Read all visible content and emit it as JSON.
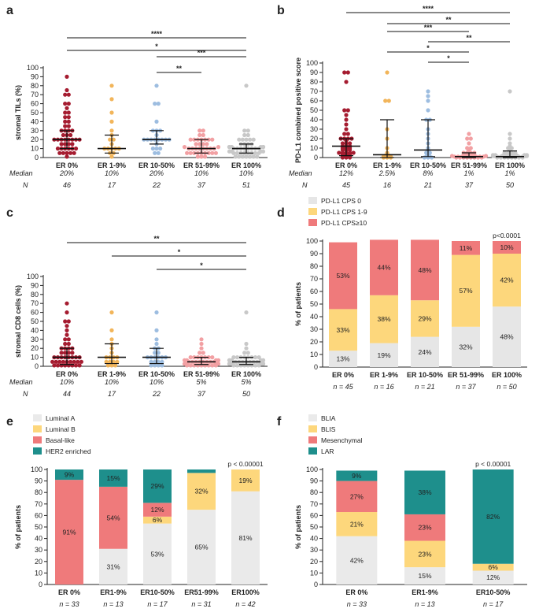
{
  "colors": {
    "er0": "#a51c30",
    "er19": "#f2b55a",
    "er1050": "#9dbde0",
    "er5199": "#f2a0a3",
    "er100": "#c8c8c8",
    "cps0": "#e6e6e6",
    "cps19": "#fdd77c",
    "cps10": "#ef7a7b",
    "lumA": "#eaeaea",
    "lumB": "#fdd77c",
    "basal": "#ef7a7b",
    "her2": "#1e8f8c",
    "blia": "#eaeaea",
    "blis": "#fdd77c",
    "mes": "#ef7a7b",
    "lar": "#1e8f8c"
  },
  "chart_data": [
    {
      "panel": "a",
      "type": "scatter",
      "ylabel": "stromal TILs (%)",
      "ylim": [
        0,
        100
      ],
      "yticks": [
        0,
        10,
        20,
        30,
        40,
        50,
        60,
        70,
        80,
        90,
        100
      ],
      "categories": [
        "ER 0%",
        "ER 1-9%",
        "ER 10-50%",
        "ER 51-99%",
        "ER 100%"
      ],
      "median_label": "Median",
      "n_label": "N",
      "medians": [
        "20%",
        "10%",
        "20%",
        "10%",
        "10%"
      ],
      "n": [
        "46",
        "17",
        "22",
        "37",
        "51"
      ],
      "center": [
        20,
        10,
        20,
        10,
        10
      ],
      "bar_low": [
        10,
        5,
        15,
        5,
        5
      ],
      "bar_high": [
        30,
        25,
        30,
        20,
        15
      ],
      "points": [
        [
          90,
          75,
          70,
          70,
          60,
          60,
          55,
          50,
          50,
          45,
          45,
          40,
          40,
          35,
          35,
          30,
          30,
          30,
          30,
          25,
          25,
          25,
          20,
          20,
          20,
          20,
          20,
          20,
          20,
          20,
          15,
          15,
          15,
          15,
          10,
          10,
          10,
          10,
          10,
          10,
          5,
          5,
          5,
          5,
          5,
          1
        ],
        [
          80,
          65,
          50,
          40,
          30,
          25,
          20,
          20,
          15,
          10,
          10,
          10,
          10,
          10,
          5,
          5,
          1
        ],
        [
          80,
          60,
          60,
          40,
          30,
          30,
          30,
          25,
          20,
          20,
          20,
          20,
          20,
          20,
          20,
          20,
          15,
          10,
          10,
          10,
          5,
          5
        ],
        [
          30,
          30,
          25,
          25,
          20,
          20,
          20,
          20,
          20,
          20,
          20,
          15,
          15,
          15,
          15,
          10,
          10,
          10,
          10,
          10,
          10,
          10,
          10,
          10,
          10,
          5,
          5,
          5,
          5,
          5,
          5,
          5,
          5,
          5,
          1,
          1,
          1
        ],
        [
          80,
          30,
          30,
          25,
          25,
          20,
          20,
          20,
          20,
          20,
          15,
          15,
          15,
          15,
          10,
          10,
          10,
          10,
          10,
          10,
          10,
          10,
          10,
          10,
          10,
          10,
          10,
          10,
          10,
          10,
          10,
          10,
          5,
          5,
          5,
          5,
          5,
          5,
          5,
          5,
          5,
          5,
          5,
          5,
          1,
          1,
          1,
          1,
          1,
          1,
          1
        ]
      ],
      "sig": [
        {
          "from": 0,
          "to": 4,
          "label": "****"
        },
        {
          "from": 0,
          "to": 4,
          "label": "*"
        },
        {
          "from": 2,
          "to": 4,
          "label": "***"
        },
        {
          "from": 2,
          "to": 3,
          "label": "**"
        }
      ]
    },
    {
      "panel": "b",
      "type": "scatter",
      "ylabel": "PD-L1 combined positive score",
      "ylim": [
        0,
        100
      ],
      "yticks": [
        0,
        10,
        20,
        30,
        40,
        50,
        60,
        70,
        80,
        90,
        100
      ],
      "categories": [
        "ER 0%",
        "ER 1-9%",
        "ER 10-50%",
        "ER 51-99%",
        "ER 100%"
      ],
      "median_label": "Median",
      "n_label": "N",
      "medians": [
        "12%",
        "2.5%",
        "8%",
        "1%",
        "1%"
      ],
      "n": [
        "45",
        "16",
        "21",
        "37",
        "50"
      ],
      "center": [
        12,
        3,
        8,
        1,
        1
      ],
      "bar_low": [
        2,
        0,
        1,
        0,
        0
      ],
      "bar_high": [
        20,
        40,
        40,
        5,
        7
      ],
      "points": [
        [
          90,
          90,
          80,
          50,
          50,
          45,
          40,
          35,
          30,
          25,
          25,
          20,
          20,
          20,
          20,
          18,
          15,
          15,
          15,
          12,
          12,
          12,
          10,
          10,
          10,
          8,
          8,
          8,
          5,
          5,
          5,
          5,
          5,
          3,
          3,
          3,
          2,
          2,
          2,
          1,
          1,
          1,
          0,
          0,
          0
        ],
        [
          90,
          60,
          60,
          30,
          20,
          10,
          5,
          3,
          2,
          2,
          1,
          1,
          1,
          0,
          0,
          0
        ],
        [
          70,
          65,
          60,
          50,
          40,
          40,
          30,
          25,
          20,
          15,
          10,
          8,
          5,
          5,
          3,
          2,
          1,
          1,
          0,
          0,
          0
        ],
        [
          25,
          20,
          20,
          15,
          10,
          10,
          8,
          5,
          5,
          5,
          5,
          3,
          3,
          3,
          2,
          2,
          2,
          2,
          1,
          1,
          1,
          1,
          1,
          1,
          1,
          1,
          1,
          0,
          0,
          0,
          0,
          0,
          0,
          0,
          0,
          0,
          0
        ],
        [
          70,
          25,
          20,
          15,
          12,
          10,
          10,
          8,
          7,
          6,
          5,
          5,
          5,
          5,
          4,
          3,
          3,
          3,
          3,
          2,
          2,
          2,
          2,
          2,
          1,
          1,
          1,
          1,
          1,
          1,
          1,
          1,
          1,
          1,
          1,
          1,
          0,
          0,
          0,
          0,
          0,
          0,
          0,
          0,
          0,
          0,
          0,
          0,
          0,
          0
        ]
      ],
      "sig": [
        {
          "from": 0,
          "to": 4,
          "label": "****"
        },
        {
          "from": 1,
          "to": 4,
          "label": "**"
        },
        {
          "from": 1,
          "to": 3,
          "label": "***"
        },
        {
          "from": 2,
          "to": 4,
          "label": "**"
        },
        {
          "from": 1,
          "to": 3,
          "label": "*"
        },
        {
          "from": 2,
          "to": 3,
          "label": "*"
        }
      ]
    },
    {
      "panel": "c",
      "type": "scatter",
      "ylabel": "stromal CD8 cells (%)",
      "ylim": [
        0,
        100
      ],
      "yticks": [
        0,
        10,
        20,
        30,
        40,
        50,
        60,
        70,
        80,
        90,
        100
      ],
      "categories": [
        "ER 0%",
        "ER 1-9%",
        "ER 10-50%",
        "ER 51-99%",
        "ER 100%"
      ],
      "median_label": "Median",
      "n_label": "N",
      "medians": [
        "10%",
        "10%",
        "10%",
        "5%",
        "5%"
      ],
      "n": [
        "44",
        "17",
        "22",
        "37",
        "50"
      ],
      "center": [
        10,
        10,
        10,
        5,
        5
      ],
      "bar_low": [
        2,
        3,
        3,
        2,
        2
      ],
      "bar_high": [
        20,
        25,
        20,
        10,
        10
      ],
      "points": [
        [
          70,
          60,
          50,
          50,
          45,
          40,
          35,
          30,
          30,
          25,
          25,
          20,
          20,
          20,
          20,
          15,
          15,
          15,
          15,
          10,
          10,
          10,
          10,
          10,
          10,
          10,
          10,
          5,
          5,
          5,
          5,
          5,
          5,
          5,
          5,
          5,
          1,
          1,
          1,
          1,
          1,
          1,
          1,
          1
        ],
        [
          60,
          40,
          30,
          25,
          20,
          15,
          10,
          10,
          10,
          10,
          5,
          5,
          5,
          5,
          1,
          1,
          1
        ],
        [
          60,
          40,
          30,
          25,
          20,
          20,
          15,
          15,
          10,
          10,
          10,
          10,
          10,
          10,
          5,
          5,
          5,
          5,
          1,
          1,
          1,
          1
        ],
        [
          30,
          25,
          20,
          15,
          15,
          10,
          10,
          10,
          10,
          10,
          10,
          10,
          5,
          5,
          5,
          5,
          5,
          5,
          5,
          5,
          5,
          5,
          5,
          5,
          1,
          1,
          1,
          1,
          1,
          1,
          1,
          1,
          1,
          1,
          1,
          1,
          1
        ],
        [
          60,
          25,
          20,
          15,
          15,
          10,
          10,
          10,
          10,
          10,
          10,
          10,
          10,
          5,
          5,
          5,
          5,
          5,
          5,
          5,
          5,
          5,
          5,
          5,
          5,
          5,
          5,
          5,
          5,
          5,
          1,
          1,
          1,
          1,
          1,
          1,
          1,
          1,
          1,
          1,
          1,
          1,
          1,
          1,
          1,
          1,
          1,
          1,
          1,
          1
        ]
      ],
      "sig": [
        {
          "from": 0,
          "to": 4,
          "label": "**"
        },
        {
          "from": 1,
          "to": 4,
          "label": "*"
        },
        {
          "from": 2,
          "to": 4,
          "label": "*"
        }
      ]
    },
    {
      "panel": "d",
      "type": "bar",
      "stacked": true,
      "ylabel": "% of patients",
      "ylim": [
        0,
        100
      ],
      "yticks": [
        0,
        10,
        20,
        30,
        40,
        50,
        60,
        70,
        80,
        90,
        100
      ],
      "categories": [
        "ER 0%",
        "ER 1-9%",
        "ER 10-50%",
        "ER 51-99%",
        "ER 100%"
      ],
      "n_labels": [
        "n = 45",
        "n = 16",
        "n = 21",
        "n = 37",
        "n = 50"
      ],
      "pvalue": "p<0.0001",
      "legend_position": "top-left",
      "series": [
        {
          "name": "PD-L1 CPS 0",
          "color_key": "cps0",
          "values": [
            13,
            19,
            24,
            32,
            48
          ],
          "labels": [
            "13%",
            "19%",
            "24%",
            "32%",
            "48%"
          ]
        },
        {
          "name": "PD-L1 CPS 1-9",
          "color_key": "cps19",
          "values": [
            33,
            38,
            29,
            57,
            42
          ],
          "labels": [
            "33%",
            "38%",
            "29%",
            "57%",
            "42%"
          ]
        },
        {
          "name": "PD-L1 CPS≥10",
          "color_key": "cps10",
          "values": [
            53,
            44,
            48,
            11,
            10
          ],
          "labels": [
            "53%",
            "44%",
            "48%",
            "11%",
            "10%"
          ]
        }
      ]
    },
    {
      "panel": "e",
      "type": "bar",
      "stacked": true,
      "ylabel": "% of patients",
      "ylim": [
        0,
        100
      ],
      "yticks": [
        0,
        10,
        20,
        30,
        40,
        50,
        60,
        70,
        80,
        90,
        100
      ],
      "categories": [
        "ER 0%",
        "ER1-9%",
        "ER10-50%",
        "ER51-99%",
        "ER100%"
      ],
      "n_labels": [
        "n = 33",
        "n = 13",
        "n = 17",
        "n = 31",
        "n = 42"
      ],
      "pvalue": "p < 0.00001",
      "legend_position": "top-left",
      "series": [
        {
          "name": "Luminal A",
          "color_key": "lumA",
          "values": [
            0,
            31,
            53,
            65,
            81
          ],
          "labels": [
            "",
            "31%",
            "53%",
            "65%",
            "81%"
          ]
        },
        {
          "name": "Luminal B",
          "color_key": "lumB",
          "values": [
            0,
            0,
            6,
            32,
            19
          ],
          "labels": [
            "",
            "",
            "6%",
            "32%",
            "19%"
          ]
        },
        {
          "name": "Basal-like",
          "color_key": "basal",
          "values": [
            91,
            54,
            12,
            0,
            0
          ],
          "labels": [
            "91%",
            "54%",
            "12%",
            "",
            ""
          ]
        },
        {
          "name": "HER2 enriched",
          "color_key": "her2",
          "values": [
            9,
            15,
            29,
            3,
            0
          ],
          "labels": [
            "9%",
            "15%",
            "29%",
            "",
            ""
          ]
        }
      ]
    },
    {
      "panel": "f",
      "type": "bar",
      "stacked": true,
      "ylabel": "% of patients",
      "ylim": [
        0,
        100
      ],
      "yticks": [
        0,
        10,
        20,
        30,
        40,
        50,
        60,
        70,
        80,
        90,
        100
      ],
      "categories": [
        "ER 0%",
        "ER1-9%",
        "ER10-50%"
      ],
      "n_labels": [
        "n = 33",
        "n = 13",
        "n = 17"
      ],
      "pvalue": "p < 0.00001",
      "legend_position": "top-left",
      "series": [
        {
          "name": "BLIA",
          "color_key": "blia",
          "values": [
            42,
            15,
            12
          ],
          "labels": [
            "42%",
            "15%",
            "12%"
          ]
        },
        {
          "name": "BLIS",
          "color_key": "blis",
          "values": [
            21,
            23,
            6
          ],
          "labels": [
            "21%",
            "23%",
            "6%"
          ]
        },
        {
          "name": "Mesenchymal",
          "color_key": "mes",
          "values": [
            27,
            23,
            0
          ],
          "labels": [
            "27%",
            "23%",
            ""
          ]
        },
        {
          "name": "LAR",
          "color_key": "lar",
          "values": [
            9,
            38,
            82
          ],
          "labels": [
            "9%",
            "38%",
            "82%"
          ]
        }
      ]
    }
  ]
}
